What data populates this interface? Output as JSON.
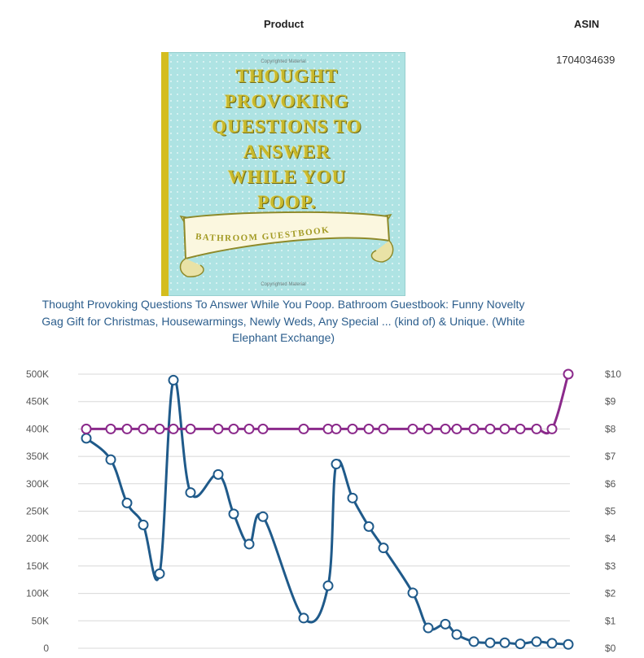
{
  "header": {
    "product_label": "Product",
    "asin_label": "ASIN"
  },
  "product": {
    "asin": "1704034639",
    "title": "Thought Provoking Questions To Answer While You Poop. Bathroom Guestbook: Funny Novelty Gag Gift for Christmas, Housewarmings, Newly Weds, Any Special ... (kind of) & Unique. (White Elephant Exchange)",
    "cover": {
      "copyright_top": "Copyrighted Material",
      "lines": [
        "Thought",
        "provoking",
        "questions to",
        "answer",
        "while you",
        "poop."
      ],
      "ribbon_text": "Bathroom Guestbook",
      "copyright_bottom": "Copyrighted Material",
      "colors": {
        "background": "#aee3e3",
        "spine": "#d4bd1f",
        "lettering": "#c8ba2c"
      }
    }
  },
  "chart_data": {
    "type": "line",
    "left_axis": {
      "ticks": [
        "0",
        "50K",
        "100K",
        "150K",
        "200K",
        "250K",
        "300K",
        "350K",
        "400K",
        "450K",
        "500K"
      ],
      "range": [
        0,
        500000
      ]
    },
    "right_axis": {
      "ticks": [
        "$0",
        "$1",
        "$2",
        "$3",
        "$4",
        "$5",
        "$6",
        "$7",
        "$8",
        "$9",
        "$10"
      ],
      "range": [
        0,
        10
      ]
    },
    "grid": true,
    "series": [
      {
        "axis": "left",
        "color": "#1f5a8a",
        "values": [
          383000,
          344000,
          265000,
          225000,
          136000,
          489000,
          284000,
          317000,
          245000,
          190000,
          240000,
          55000,
          114000,
          336000,
          274000,
          222000,
          183000,
          101000,
          37000,
          44000,
          25000,
          12000,
          10000,
          10000,
          8000,
          12000,
          9000,
          7000
        ]
      },
      {
        "axis": "right",
        "color": "#8b2a8b",
        "values": [
          8,
          8,
          8,
          8,
          8,
          8,
          8,
          8,
          8,
          8,
          8,
          8,
          8,
          8,
          8,
          8,
          8,
          8,
          8,
          8,
          8,
          8,
          8,
          8,
          8,
          8,
          8,
          10
        ]
      }
    ]
  }
}
